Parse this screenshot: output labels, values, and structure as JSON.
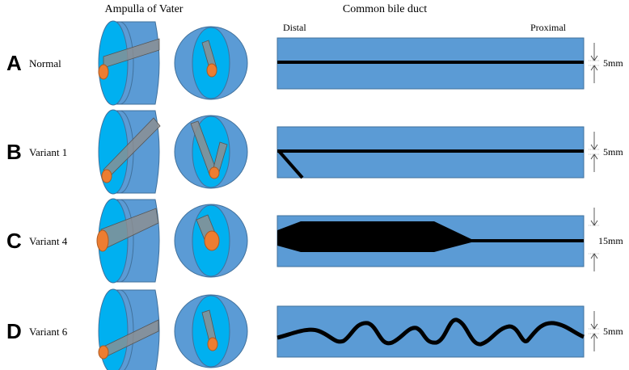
{
  "headers": {
    "ampulla": "Ampulla of Vater",
    "duct": "Common bile duct",
    "distal": "Distal",
    "proximal": "Proximal"
  },
  "rows": [
    {
      "letter": "A",
      "label": "Normal",
      "measure": "5mm"
    },
    {
      "letter": "B",
      "label": "Variant 1",
      "measure": "5mm"
    },
    {
      "letter": "C",
      "label": "Variant 4",
      "measure": "15mm"
    },
    {
      "letter": "D",
      "label": "Variant 6",
      "measure": "5mm"
    }
  ],
  "colors": {
    "outer": "#5b9bd5",
    "inner": "#00b0f0",
    "channel": "#8f8f8f",
    "papilla": "#ed7d31",
    "duct_line": "#000000"
  }
}
